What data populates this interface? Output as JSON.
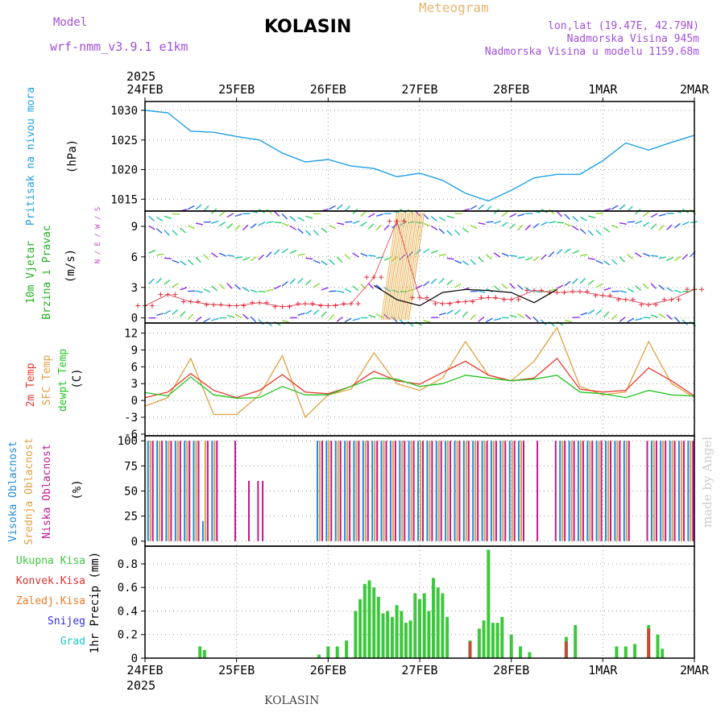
{
  "header": {
    "model_label": "Model",
    "model_name": "wrf-nmm_v3.9.1  e1km",
    "city": "KOLASIN",
    "meteogram": "Meteogram",
    "lonlat": "lon,lat (19.47E, 42.79N)",
    "alt": "Nadmorska Visina 945m",
    "alt_model": "Nadmorska Visina u modelu 1159.68m",
    "year": "2025",
    "footer_city": "KOLASIN",
    "watermark": "made by Angel"
  },
  "colors": {
    "pressure": "#1ea0e6",
    "temp2m": "#e8382c",
    "sfc": "#e0a040",
    "dew": "#22c422",
    "high_cloud": "#1e8ce0",
    "mid_cloud": "#e0a040",
    "low_cloud": "#c01890",
    "total_precip": "#3cc83c",
    "convective": "#e03030",
    "ice": "#f07820",
    "snow": "#3030e0",
    "hail": "#20c8c8"
  },
  "chart_data": [
    {
      "type": "line",
      "panel": "pressure",
      "ylabel": "(hPa)",
      "side_labels": [
        "Pritisak na nivou mora"
      ],
      "ylim": [
        1013,
        1031.5
      ],
      "yticks": [
        1015,
        1020,
        1025,
        1030
      ],
      "x_days": [
        0,
        0.25,
        0.5,
        0.75,
        1,
        1.25,
        1.5,
        1.75,
        2,
        2.25,
        2.5,
        2.75,
        3,
        3.25,
        3.5,
        3.75,
        4,
        4.25,
        4.5,
        4.75,
        5,
        5.25,
        5.5,
        5.75,
        6
      ],
      "series": [
        {
          "values": [
            1030,
            1029.6,
            1026.5,
            1026.3,
            1025.6,
            1025,
            1022.8,
            1021.3,
            1021.7,
            1020.6,
            1020.2,
            1018.8,
            1019.4,
            1018.2,
            1016,
            1014.7,
            1016.5,
            1018.6,
            1019.2,
            1019.2,
            1021.5,
            1024.5,
            1023.3,
            1024.6,
            1025.8
          ]
        }
      ]
    },
    {
      "type": "scatter",
      "panel": "wind",
      "ylabel": "(m/s)",
      "side_labels": [
        "10m Vjetar",
        "Brzina i Pravac"
      ],
      "compass": "N / E / W / S",
      "ylim": [
        -0.5,
        10.5
      ],
      "yticks": [
        0,
        3,
        6,
        9
      ],
      "x_days": [
        0,
        0.25,
        0.5,
        0.75,
        1,
        1.25,
        1.5,
        1.75,
        2,
        2.25,
        2.5,
        2.75,
        3,
        3.25,
        3.5,
        3.75,
        4,
        4.25,
        4.5,
        4.75,
        5,
        5.25,
        5.5,
        5.75,
        6
      ],
      "series": [
        {
          "name": "gust",
          "values": [
            1.2,
            2.3,
            1.6,
            1.3,
            1.2,
            1.5,
            1.1,
            1.4,
            1.2,
            1.4,
            4.0,
            9.5,
            2.0,
            1.4,
            1.6,
            2.0,
            1.8,
            2.7,
            2.5,
            2.6,
            2.2,
            1.8,
            1.3,
            1.8,
            2.8
          ]
        },
        {
          "name": "speed",
          "values": [
            null,
            null,
            null,
            null,
            null,
            null,
            null,
            null,
            null,
            null,
            3.2,
            1.8,
            1.2,
            2.5,
            2.8,
            2.7,
            2.5,
            1.5,
            2.8,
            null,
            null,
            null,
            null,
            null,
            null
          ]
        }
      ]
    },
    {
      "type": "line",
      "panel": "temperature",
      "ylabel": "(C)",
      "side_labels": [
        "2m Temp",
        "SFC Temp",
        "dewpt Temp"
      ],
      "ylim": [
        -6.3,
        13.8
      ],
      "yticks": [
        -6,
        -3,
        0,
        3,
        6,
        9,
        12
      ],
      "x_days": [
        0,
        0.25,
        0.5,
        0.75,
        1,
        1.25,
        1.5,
        1.75,
        2,
        2.25,
        2.5,
        2.75,
        3,
        3.25,
        3.5,
        3.75,
        4,
        4.25,
        4.5,
        4.75,
        5,
        5.25,
        5.5,
        5.75,
        6
      ],
      "series": [
        {
          "name": "2m Temp",
          "values": [
            0.5,
            1.5,
            4.8,
            1.8,
            0.5,
            1.8,
            4.6,
            1.5,
            1.2,
            2.5,
            5.2,
            3.5,
            2.9,
            5.0,
            7.0,
            4.5,
            3.5,
            4.0,
            7.5,
            2.0,
            1.5,
            1.8,
            5.8,
            3.5,
            0.8
          ]
        },
        {
          "name": "SFC Temp",
          "values": [
            -1.0,
            0.5,
            7.5,
            -2.5,
            -2.5,
            1.0,
            8.0,
            -3.0,
            1.0,
            2.0,
            8.5,
            3.0,
            1.8,
            4.0,
            10.5,
            4.5,
            3.5,
            7.0,
            13.0,
            2.5,
            1.0,
            1.5,
            10.5,
            3.0,
            0.5
          ]
        },
        {
          "name": "dewpt Temp",
          "values": [
            1.4,
            0.8,
            4.2,
            1.0,
            0.4,
            0.5,
            2.5,
            1.0,
            1.0,
            2.5,
            4.0,
            3.8,
            2.5,
            3.0,
            4.5,
            4.0,
            3.5,
            3.8,
            4.5,
            1.5,
            1.2,
            0.5,
            1.8,
            1.0,
            0.8
          ]
        }
      ]
    },
    {
      "type": "bar",
      "panel": "clouds",
      "ylabel": "(%)",
      "side_labels": [
        "Visoka Oblacnost",
        "Srednja Oblacnost",
        "Niska Oblacnost"
      ],
      "ylim": [
        -5,
        105
      ],
      "yticks": [
        0,
        25,
        50,
        75,
        100
      ],
      "x_days": [
        0.05,
        0.15,
        0.25,
        0.35,
        0.45,
        0.55,
        0.65,
        0.75,
        0.95,
        1.1,
        1.2,
        1.25,
        1.9,
        2.0,
        2.1,
        2.2,
        2.3,
        2.4,
        2.5,
        2.6,
        2.7,
        2.8,
        2.9,
        3.0,
        3.1,
        3.2,
        3.3,
        3.4,
        3.5,
        3.6,
        3.7,
        3.8,
        3.9,
        4.0,
        4.1,
        4.25,
        4.45,
        4.55,
        4.65,
        4.75,
        4.85,
        4.95,
        5.05,
        5.15,
        5.25,
        5.45,
        5.55,
        5.65,
        5.75,
        5.85,
        5.95
      ],
      "series": [
        {
          "name": "Visoka Oblacnost",
          "values": [
            100,
            100,
            100,
            100,
            100,
            100,
            20,
            100,
            0,
            0,
            0,
            0,
            100,
            100,
            100,
            100,
            100,
            100,
            100,
            100,
            100,
            100,
            100,
            100,
            100,
            100,
            100,
            100,
            100,
            100,
            100,
            100,
            100,
            100,
            100,
            0,
            0,
            100,
            100,
            100,
            100,
            100,
            100,
            100,
            100,
            0,
            100,
            100,
            100,
            100,
            100
          ]
        },
        {
          "name": "Srednja Oblacnost",
          "values": [
            100,
            100,
            100,
            100,
            100,
            100,
            100,
            100,
            0,
            0,
            0,
            0,
            100,
            100,
            100,
            100,
            100,
            100,
            100,
            100,
            100,
            100,
            100,
            100,
            100,
            100,
            100,
            100,
            100,
            100,
            100,
            100,
            100,
            100,
            100,
            0,
            0,
            100,
            100,
            100,
            100,
            100,
            100,
            100,
            100,
            0,
            100,
            100,
            100,
            100,
            100
          ]
        },
        {
          "name": "Niska Oblacnost",
          "values": [
            100,
            100,
            100,
            100,
            100,
            100,
            100,
            100,
            100,
            60,
            60,
            60,
            100,
            100,
            100,
            100,
            100,
            100,
            100,
            100,
            100,
            100,
            100,
            100,
            100,
            100,
            100,
            100,
            100,
            100,
            100,
            100,
            100,
            100,
            100,
            100,
            100,
            100,
            100,
            100,
            100,
            100,
            100,
            100,
            100,
            100,
            100,
            100,
            100,
            100,
            100
          ]
        }
      ]
    },
    {
      "type": "bar",
      "panel": "precipitation",
      "ylabel": "1hr Precip (mm)",
      "side_labels": [
        "Ukupna Kisa",
        "Konvek.Kisa",
        "Zaledj.Kisa",
        "Snijeg",
        "Grad"
      ],
      "ylim": [
        0,
        0.95
      ],
      "yticks": [
        0,
        0.2,
        0.4,
        0.6,
        0.8
      ],
      "x_days": [
        0.6,
        0.65,
        1.9,
        2.0,
        2.1,
        2.2,
        2.3,
        2.35,
        2.4,
        2.45,
        2.5,
        2.55,
        2.6,
        2.65,
        2.7,
        2.75,
        2.8,
        2.85,
        2.9,
        2.95,
        3.0,
        3.05,
        3.1,
        3.15,
        3.2,
        3.25,
        3.3,
        3.55,
        3.65,
        3.7,
        3.75,
        3.8,
        3.85,
        3.9,
        4.0,
        4.1,
        4.2,
        4.6,
        4.7,
        5.15,
        5.25,
        5.35,
        5.5,
        5.6,
        5.65
      ],
      "series": [
        {
          "name": "Ukupna Kisa",
          "values": [
            0.1,
            0.07,
            0.03,
            0.1,
            0.1,
            0.15,
            0.4,
            0.5,
            0.63,
            0.66,
            0.6,
            0.52,
            0.38,
            0.4,
            0.35,
            0.45,
            0.4,
            0.3,
            0.32,
            0.55,
            0.5,
            0.55,
            0.4,
            0.68,
            0.6,
            0.55,
            0.35,
            0.15,
            0.25,
            0.32,
            0.92,
            0.3,
            0.3,
            0.35,
            0.2,
            0.1,
            0.05,
            0.18,
            0.28,
            0.1,
            0.1,
            0.12,
            0.28,
            0.2,
            0.08
          ]
        },
        {
          "name": "Konvek.Kisa",
          "values": [
            0,
            0,
            0,
            0,
            0,
            0,
            0,
            0,
            0,
            0,
            0,
            0,
            0,
            0,
            0,
            0,
            0,
            0,
            0,
            0,
            0,
            0,
            0,
            0,
            0,
            0,
            0,
            0.14,
            0,
            0,
            0,
            0,
            0,
            0,
            0,
            0,
            0,
            0.14,
            0,
            0,
            0,
            0,
            0.25,
            0,
            0
          ]
        }
      ]
    }
  ],
  "x_axis": {
    "labels": [
      "24FEB",
      "25FEB",
      "26FEB",
      "27FEB",
      "28FEB",
      "1MAR",
      "2MAR"
    ]
  }
}
